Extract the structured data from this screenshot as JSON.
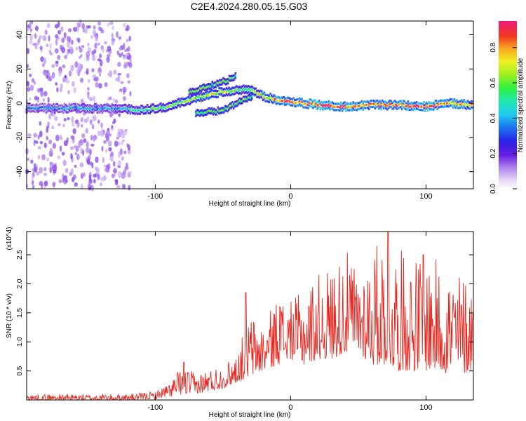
{
  "title": "C2E4.2024.280.05.15.G03",
  "colors": {
    "snr_line": "#e8261e",
    "background": "#ffffff",
    "spectrogram_background": "#ffffff"
  },
  "chart_data": [
    {
      "type": "heatmap",
      "title": "C2E4.2024.280.05.15.G03",
      "xlabel": "Height of straight line (km)",
      "ylabel": "Frequency (Hz)",
      "xlim": [
        -195,
        135
      ],
      "ylim": [
        -50,
        48
      ],
      "x_ticks": [
        -100,
        0,
        100
      ],
      "y_ticks": [
        -40,
        -20,
        0,
        20,
        40
      ],
      "colorbar": {
        "label": "Normalized spectral amplitude",
        "range": [
          0.0,
          0.95
        ],
        "ticks": [
          0.0,
          0.2,
          0.4,
          0.6,
          0.8
        ]
      },
      "ridge_main": {
        "x": [
          -195,
          -160,
          -130,
          -110,
          -90,
          -70,
          -55,
          -45,
          -35,
          -28,
          -20,
          -10,
          0,
          20,
          40,
          60,
          80,
          100,
          115,
          135
        ],
        "frequency": [
          -3,
          -3,
          -3,
          -4,
          -2,
          3,
          6,
          7,
          8,
          7,
          4,
          2,
          1,
          -1,
          -2,
          -1,
          -1,
          -2,
          0,
          -1
        ],
        "peak_amplitude": [
          0.35,
          0.4,
          0.4,
          0.55,
          0.6,
          0.7,
          0.7,
          0.65,
          0.55,
          0.65,
          0.75,
          0.85,
          0.9,
          0.95,
          0.9,
          0.85,
          0.9,
          0.95,
          0.85,
          0.8
        ]
      },
      "ridge_upper": {
        "x": [
          -75,
          -65,
          -55,
          -45,
          -40
        ],
        "frequency": [
          6,
          9,
          11,
          14,
          16
        ]
      },
      "ridge_lower": {
        "x": [
          -70,
          -60,
          -50,
          -42,
          -35,
          -28
        ],
        "frequency": [
          -6,
          -5,
          -4,
          -1,
          2,
          4
        ]
      }
    },
    {
      "type": "line",
      "xlabel": "Height of straight line (km)",
      "ylabel": "SNR (10 * v/v)",
      "y_multiplier": "(x10^4)",
      "xlim": [
        -195,
        135
      ],
      "ylim": [
        0,
        2.9
      ],
      "x_ticks": [
        -100,
        0,
        100
      ],
      "y_ticks": [
        0.5,
        1.0,
        1.5,
        2.0,
        2.5
      ],
      "envelope": {
        "x": [
          -195,
          -150,
          -120,
          -100,
          -90,
          -80,
          -70,
          -60,
          -50,
          -40,
          -30,
          -20,
          -10,
          0,
          10,
          20,
          30,
          40,
          50,
          60,
          70,
          80,
          90,
          100,
          110,
          120,
          135
        ],
        "low": [
          0.0,
          0.0,
          0.0,
          0.02,
          0.05,
          0.1,
          0.1,
          0.15,
          0.2,
          0.3,
          0.4,
          0.5,
          0.6,
          0.7,
          0.6,
          0.7,
          0.7,
          0.8,
          0.8,
          0.6,
          0.6,
          0.5,
          0.5,
          0.5,
          0.5,
          0.4,
          0.5
        ],
        "high": [
          0.1,
          0.1,
          0.1,
          0.15,
          0.3,
          0.6,
          0.45,
          0.55,
          0.6,
          0.8,
          1.5,
          1.3,
          1.8,
          1.7,
          1.9,
          2.2,
          2.3,
          2.6,
          2.3,
          2.6,
          2.9,
          2.6,
          2.5,
          2.5,
          2.4,
          2.3,
          2.1
        ]
      },
      "peaks": [
        {
          "x": -79,
          "y": 0.65
        },
        {
          "x": -33,
          "y": 1.85
        },
        {
          "x": -8,
          "y": 1.6
        },
        {
          "x": 72,
          "y": 2.9
        },
        {
          "x": 98,
          "y": 2.5
        }
      ]
    }
  ]
}
